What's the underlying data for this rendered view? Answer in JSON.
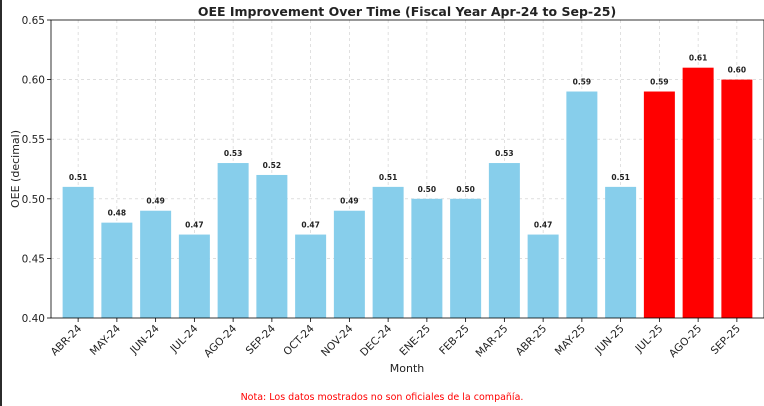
{
  "footnote": "Nota: Los datos mostrados no son oficiales de la compañía.",
  "chart_data": {
    "type": "bar",
    "title": "OEE Improvement Over Time (Fiscal Year Apr-24 to Sep-25)",
    "xlabel": "Month",
    "ylabel": "OEE (decimal)",
    "ylim": [
      0.4,
      0.65
    ],
    "yticks": [
      "0.40",
      "0.45",
      "0.50",
      "0.55",
      "0.60",
      "0.65"
    ],
    "grid": true,
    "categories": [
      "ABR-24",
      "MAY-24",
      "JUN-24",
      "JUL-24",
      "AGO-24",
      "SEP-24",
      "OCT-24",
      "NOV-24",
      "DEC-24",
      "ENE-25",
      "FEB-25",
      "MAR-25",
      "ABR-25",
      "MAY-25",
      "JUN-25",
      "JUL-25",
      "AGO-25",
      "SEP-25"
    ],
    "values": [
      0.51,
      0.48,
      0.49,
      0.47,
      0.53,
      0.52,
      0.47,
      0.49,
      0.51,
      0.5,
      0.5,
      0.53,
      0.47,
      0.59,
      0.51,
      0.59,
      0.61,
      0.6
    ],
    "data_labels": [
      "0.51",
      "0.48",
      "0.49",
      "0.47",
      "0.53",
      "0.52",
      "0.47",
      "0.49",
      "0.51",
      "0.50",
      "0.50",
      "0.53",
      "0.47",
      "0.59",
      "0.51",
      "0.59",
      "0.61",
      "0.60"
    ],
    "colors": {
      "base": "#87ceeb",
      "highlight": "#ff0000"
    },
    "highlight_from_index": 15
  }
}
